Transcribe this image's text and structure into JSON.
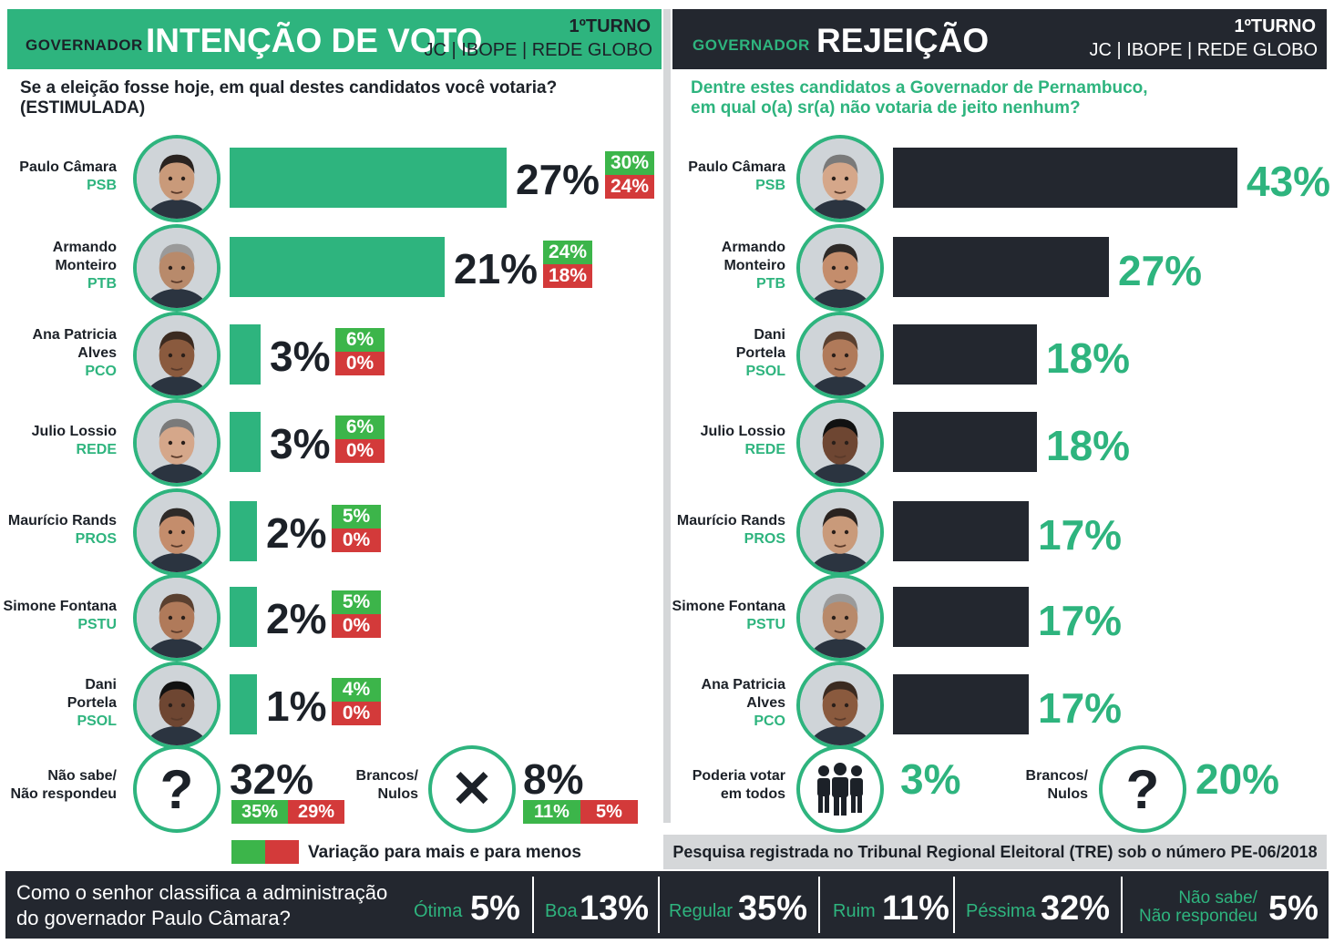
{
  "left": {
    "gov_label": "GOVERNADOR",
    "title": "INTENÇÃO DE VOTO",
    "turno": "1ºTURNO",
    "source": "JC | IBOPE | REDE GLOBO",
    "question": "Se a eleição fosse hoje, em qual destes candidatos você votaria? (ESTIMULADA)",
    "legend": "Variação para mais e para menos",
    "undecided": {
      "label_1": "Não sabe/",
      "label_2": "Não respondeu",
      "value": "32%",
      "range_high": "35%",
      "range_low": "29%",
      "icon": "question-icon",
      "glyph": "?"
    },
    "blank": {
      "label_1": "Brancos/",
      "label_2": "Nulos",
      "value": "8%",
      "range_high": "11%",
      "range_low": "5%",
      "icon": "x-icon",
      "glyph": "✕"
    }
  },
  "right": {
    "gov_label": "GOVERNADOR",
    "title": "REJEIÇÃO",
    "turno": "1ºTURNO",
    "source": "JC | IBOPE | REDE GLOBO",
    "question_1": "Dentre estes candidatos a Governador de Pernambuco,",
    "question_2": "em qual o(a) sr(a) não votaria de jeito nenhum?",
    "could_vote_all": {
      "label_1": "Poderia votar",
      "label_2": "em todos",
      "value": "3%",
      "icon": "group-icon"
    },
    "blank": {
      "label_1": "Brancos/",
      "label_2": "Nulos",
      "value": "20%",
      "icon": "question-icon",
      "glyph": "?"
    }
  },
  "tre_note": "Pesquisa registrada no Tribunal Regional Eleitoral (TRE) sob o número PE-06/2018",
  "footer": {
    "question_1": "Como o senhor classifica a administração",
    "question_2": "do governador Paulo Câmara?",
    "items": [
      {
        "label": "Ótima",
        "value": "5%"
      },
      {
        "label": "Boa",
        "value": "13%"
      },
      {
        "label": "Regular",
        "value": "35%"
      },
      {
        "label": "Ruim",
        "value": "11%"
      },
      {
        "label": "Péssima",
        "value": "32%"
      },
      {
        "label_1": "Não sabe/",
        "label_2": "Não respondeu",
        "value": "5%"
      }
    ]
  },
  "colors": {
    "green": "#2eb47e",
    "dark": "#23272f",
    "up": "#3cb54a",
    "down": "#d33a3a"
  },
  "chart_data": [
    {
      "type": "bar",
      "title": "INTENÇÃO DE VOTO",
      "categories": [
        "Paulo Câmara",
        "Armando Monteiro",
        "Ana Patricia Alves",
        "Julio Lossio",
        "Maurício Rands",
        "Simone Fontana",
        "Dani Portela"
      ],
      "parties": [
        "PSB",
        "PTB",
        "PCO",
        "REDE",
        "PROS",
        "PSTU",
        "PSOL"
      ],
      "name_lines": [
        [
          "Paulo Câmara"
        ],
        [
          "Armando",
          "Monteiro"
        ],
        [
          "Ana Patricia",
          "Alves"
        ],
        [
          "Julio Lossio"
        ],
        [
          "Maurício Rands"
        ],
        [
          "Simone Fontana"
        ],
        [
          "Dani",
          "Portela"
        ]
      ],
      "values": [
        27,
        21,
        3,
        3,
        2,
        2,
        1
      ],
      "range_high": [
        30,
        24,
        6,
        6,
        5,
        5,
        4
      ],
      "range_low": [
        24,
        18,
        0,
        0,
        0,
        0,
        0
      ],
      "unit": "%"
    },
    {
      "type": "bar",
      "title": "REJEIÇÃO",
      "categories": [
        "Paulo Câmara",
        "Armando Monteiro",
        "Dani Portela",
        "Julio Lossio",
        "Maurício Rands",
        "Simone Fontana",
        "Ana Patricia Alves"
      ],
      "parties": [
        "PSB",
        "PTB",
        "PSOL",
        "REDE",
        "PROS",
        "PSTU",
        "PCO"
      ],
      "name_lines": [
        [
          "Paulo Câmara"
        ],
        [
          "Armando",
          "Monteiro"
        ],
        [
          "Dani",
          "Portela"
        ],
        [
          "Julio Lossio"
        ],
        [
          "Maurício Rands"
        ],
        [
          "Simone Fontana"
        ],
        [
          "Ana Patricia",
          "Alves"
        ]
      ],
      "values": [
        43,
        27,
        18,
        18,
        17,
        17,
        17
      ],
      "unit": "%"
    }
  ]
}
